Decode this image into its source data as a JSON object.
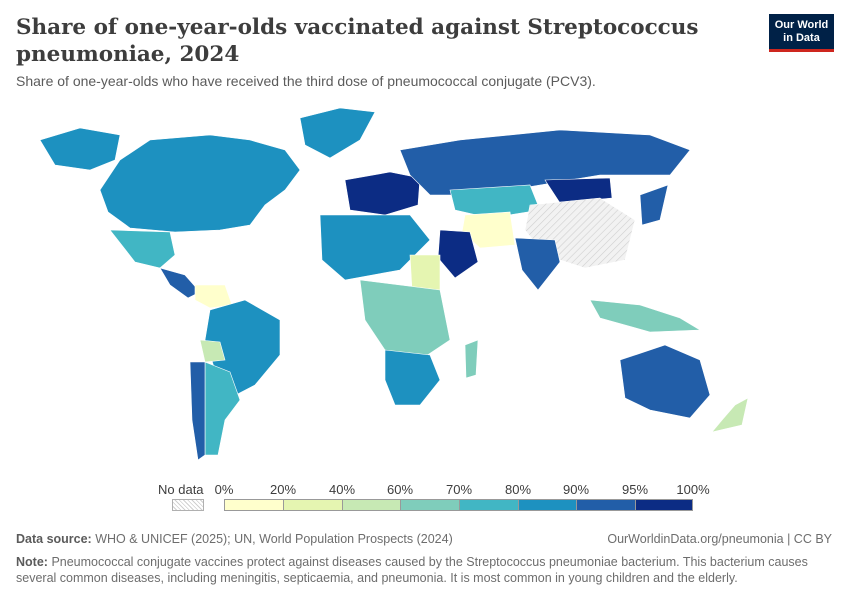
{
  "header": {
    "title": "Share of one-year-olds vaccinated against Streptococcus pneumoniae, 2024",
    "subtitle": "Share of one-year-olds who have received the third dose of pneumococcal conjugate (PCV3).",
    "logo_line1": "Our World",
    "logo_line2": "in Data"
  },
  "legend": {
    "no_data_label": "No data",
    "bin_labels": [
      "0%",
      "20%",
      "40%",
      "60%",
      "70%",
      "80%",
      "90%",
      "95%",
      "100%"
    ],
    "bin_colors": [
      "#ffffcc",
      "#e5f5b1",
      "#c7e9b4",
      "#7fcdbb",
      "#41b6c4",
      "#1d91c0",
      "#225ea8",
      "#0c2c84"
    ],
    "no_data_color": "#e6e6e6"
  },
  "regions": [
    {
      "name": "North America",
      "color": "#1d91c0"
    },
    {
      "name": "Greenland",
      "color": "#1d91c0"
    },
    {
      "name": "Alaska",
      "color": "#1d91c0"
    },
    {
      "name": "Mexico",
      "color": "#41b6c4"
    },
    {
      "name": "Central America",
      "color": "#225ea8"
    },
    {
      "name": "Venezuela",
      "color": "#ffffcc"
    },
    {
      "name": "Brazil",
      "color": "#1d91c0"
    },
    {
      "name": "Bolivia",
      "color": "#c7e9b4"
    },
    {
      "name": "Argentina",
      "color": "#41b6c4"
    },
    {
      "name": "Chile",
      "color": "#225ea8"
    },
    {
      "name": "Western Europe",
      "color": "#0c2c84"
    },
    {
      "name": "Russia",
      "color": "#225ea8"
    },
    {
      "name": "Kazakhstan",
      "color": "#41b6c4"
    },
    {
      "name": "Mongolia",
      "color": "#0c2c84"
    },
    {
      "name": "China",
      "color": "#e6e6e6"
    },
    {
      "name": "Iran",
      "color": "#ffffcc"
    },
    {
      "name": "Saudi Arabia",
      "color": "#0c2c84"
    },
    {
      "name": "India",
      "color": "#225ea8"
    },
    {
      "name": "North Africa",
      "color": "#1d91c0"
    },
    {
      "name": "Sudan",
      "color": "#e5f5b1"
    },
    {
      "name": "Central Africa",
      "color": "#7fcdbb"
    },
    {
      "name": "Southern Africa",
      "color": "#1d91c0"
    },
    {
      "name": "Madagascar",
      "color": "#7fcdbb"
    },
    {
      "name": "Australia",
      "color": "#225ea8"
    },
    {
      "name": "New Zealand",
      "color": "#c7e9b4"
    },
    {
      "name": "Indonesia",
      "color": "#7fcdbb"
    },
    {
      "name": "Japan",
      "color": "#225ea8"
    }
  ],
  "footer": {
    "source_label": "Data source:",
    "source_text": "WHO & UNICEF (2025); UN, World Population Prospects (2024)",
    "url_text": "OurWorldinData.org/pneumonia | CC BY",
    "note_label": "Note:",
    "note_text": "Pneumococcal conjugate vaccines protect against diseases caused by the Streptococcus pneumoniae bacterium. This bacterium causes several common diseases, including meningitis, septicaemia, and pneumonia. It is most common in young children and the elderly."
  }
}
